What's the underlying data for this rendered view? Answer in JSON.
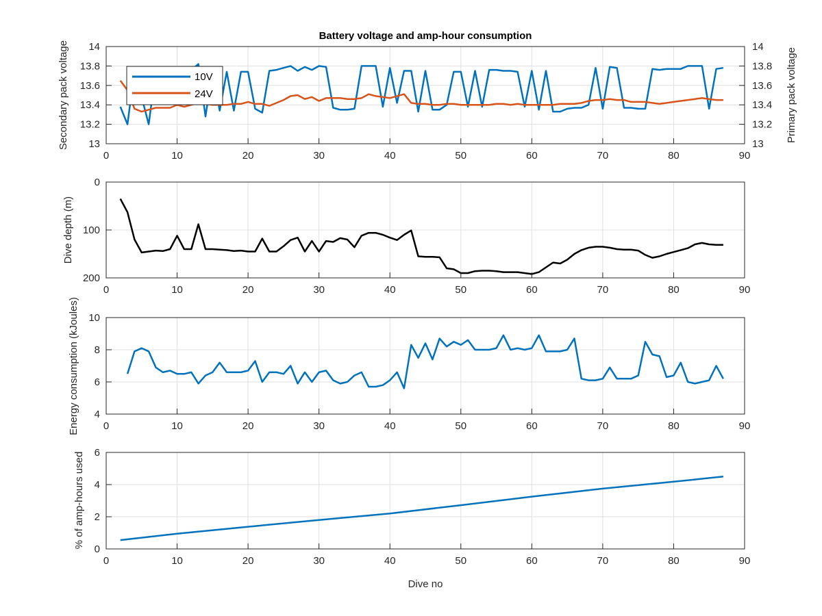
{
  "figure": {
    "title": "Battery voltage and amp-hour consumption",
    "colors": {
      "blue": "#0072BD",
      "orange": "#D95319",
      "black": "#000000",
      "grid": "#dfdfdf",
      "axis": "#262626"
    }
  },
  "chart_data": [
    {
      "type": "line",
      "title": "Battery voltage and amp-hour consumption",
      "xlabel": "",
      "ylabel": "Secondary pack voltage",
      "ylabel_right": "Primary pack voltage",
      "xlim": [
        0,
        90
      ],
      "ylim": [
        13,
        14
      ],
      "ylim_right": [
        13,
        14
      ],
      "xticks": [
        0,
        10,
        20,
        30,
        40,
        50,
        60,
        70,
        80,
        90
      ],
      "yticks": [
        13,
        13.2,
        13.4,
        13.6,
        13.8,
        14
      ],
      "yticks_right": [
        13,
        13.2,
        13.4,
        13.6,
        13.8,
        14
      ],
      "grid": true,
      "legend": {
        "placement": "top-left",
        "entries": [
          "10V",
          "24V"
        ]
      },
      "series": [
        {
          "name": "10V",
          "axis": "left",
          "color": "#0072BD",
          "x": [
            2,
            3,
            4,
            5,
            6,
            7,
            8,
            9,
            10,
            11,
            12,
            13,
            14,
            15,
            16,
            17,
            18,
            19,
            20,
            21,
            22,
            23,
            24,
            25,
            26,
            27,
            28,
            29,
            30,
            31,
            32,
            33,
            34,
            35,
            36,
            37,
            38,
            39,
            40,
            41,
            42,
            43,
            44,
            45,
            46,
            47,
            48,
            49,
            50,
            51,
            52,
            53,
            54,
            55,
            56,
            57,
            58,
            59,
            60,
            61,
            62,
            63,
            64,
            65,
            66,
            67,
            68,
            69,
            70,
            71,
            72,
            73,
            74,
            75,
            76,
            77,
            78,
            79,
            80,
            81,
            82,
            83,
            84,
            85,
            86,
            87
          ],
          "values": [
            13.38,
            13.2,
            13.76,
            13.48,
            13.2,
            13.76,
            13.42,
            13.76,
            13.76,
            13.42,
            13.76,
            13.82,
            13.28,
            13.76,
            13.34,
            13.74,
            13.34,
            13.74,
            13.74,
            13.36,
            13.32,
            13.75,
            13.76,
            13.78,
            13.8,
            13.75,
            13.79,
            13.76,
            13.8,
            13.79,
            13.37,
            13.35,
            13.35,
            13.36,
            13.8,
            13.8,
            13.8,
            13.38,
            13.78,
            13.42,
            13.75,
            13.75,
            13.33,
            13.75,
            13.35,
            13.35,
            13.4,
            13.74,
            13.74,
            13.38,
            13.75,
            13.38,
            13.76,
            13.76,
            13.75,
            13.75,
            13.74,
            13.38,
            13.75,
            13.35,
            13.75,
            13.33,
            13.33,
            13.36,
            13.37,
            13.37,
            13.4,
            13.78,
            13.36,
            13.79,
            13.78,
            13.37,
            13.37,
            13.36,
            13.36,
            13.77,
            13.76,
            13.77,
            13.77,
            13.77,
            13.8,
            13.8,
            13.8,
            13.36,
            13.77,
            13.78
          ]
        },
        {
          "name": "24V",
          "axis": "right",
          "color": "#D95319",
          "x": [
            2,
            3,
            4,
            5,
            6,
            7,
            8,
            9,
            10,
            11,
            12,
            13,
            14,
            15,
            16,
            17,
            18,
            19,
            20,
            21,
            22,
            23,
            24,
            25,
            26,
            27,
            28,
            29,
            30,
            31,
            32,
            33,
            34,
            35,
            36,
            37,
            38,
            39,
            40,
            41,
            42,
            43,
            44,
            45,
            46,
            47,
            48,
            49,
            50,
            51,
            52,
            53,
            54,
            55,
            56,
            57,
            58,
            59,
            60,
            61,
            62,
            63,
            64,
            65,
            66,
            67,
            68,
            69,
            70,
            71,
            72,
            73,
            74,
            75,
            76,
            77,
            78,
            79,
            80,
            81,
            82,
            83,
            84,
            85,
            86,
            87
          ],
          "values": [
            13.65,
            13.55,
            13.36,
            13.33,
            13.35,
            13.37,
            13.37,
            13.37,
            13.4,
            13.38,
            13.4,
            13.42,
            13.41,
            13.4,
            13.4,
            13.4,
            13.41,
            13.41,
            13.43,
            13.41,
            13.41,
            13.39,
            13.42,
            13.45,
            13.49,
            13.5,
            13.46,
            13.48,
            13.44,
            13.47,
            13.47,
            13.47,
            13.46,
            13.46,
            13.47,
            13.51,
            13.49,
            13.48,
            13.47,
            13.49,
            13.51,
            13.42,
            13.41,
            13.41,
            13.4,
            13.4,
            13.41,
            13.41,
            13.4,
            13.4,
            13.4,
            13.4,
            13.4,
            13.41,
            13.41,
            13.4,
            13.41,
            13.4,
            13.4,
            13.4,
            13.4,
            13.4,
            13.41,
            13.41,
            13.41,
            13.42,
            13.44,
            13.45,
            13.45,
            13.46,
            13.45,
            13.45,
            13.43,
            13.43,
            13.43,
            13.42,
            13.41,
            13.42,
            13.43,
            13.44,
            13.45,
            13.46,
            13.47,
            13.46,
            13.45,
            13.45
          ]
        }
      ]
    },
    {
      "type": "line",
      "xlabel": "",
      "ylabel": "Dive depth (m)",
      "xlim": [
        0,
        90
      ],
      "ylim": [
        0,
        200
      ],
      "y_reversed": true,
      "xticks": [
        0,
        10,
        20,
        30,
        40,
        50,
        60,
        70,
        80,
        90
      ],
      "yticks": [
        0,
        100,
        200
      ],
      "grid": true,
      "series": [
        {
          "color": "#000000",
          "x": [
            2,
            3,
            4,
            5,
            6,
            7,
            8,
            9,
            10,
            11,
            12,
            13,
            14,
            15,
            16,
            17,
            18,
            19,
            20,
            21,
            22,
            23,
            24,
            25,
            26,
            27,
            28,
            29,
            30,
            31,
            32,
            33,
            34,
            35,
            36,
            37,
            38,
            39,
            40,
            41,
            42,
            43,
            44,
            45,
            46,
            47,
            48,
            49,
            50,
            51,
            52,
            53,
            54,
            55,
            56,
            57,
            58,
            59,
            60,
            61,
            62,
            63,
            64,
            65,
            66,
            67,
            68,
            69,
            70,
            71,
            72,
            73,
            74,
            75,
            76,
            77,
            78,
            79,
            80,
            81,
            82,
            83,
            84,
            85,
            86,
            87
          ],
          "values": [
            35,
            63,
            120,
            147,
            145,
            143,
            144,
            140,
            112,
            140,
            140,
            88,
            140,
            140,
            141,
            142,
            144,
            143,
            145,
            145,
            118,
            145,
            145,
            134,
            121,
            116,
            145,
            123,
            145,
            123,
            125,
            117,
            120,
            136,
            112,
            106,
            106,
            110,
            116,
            121,
            110,
            101,
            155,
            156,
            156,
            157,
            180,
            182,
            190,
            190,
            186,
            185,
            185,
            186,
            188,
            188,
            188,
            190,
            192,
            188,
            178,
            168,
            170,
            162,
            150,
            142,
            137,
            135,
            135,
            137,
            140,
            141,
            141,
            143,
            152,
            158,
            155,
            150,
            146,
            142,
            138,
            130,
            127,
            130,
            131,
            131
          ]
        }
      ]
    },
    {
      "type": "line",
      "xlabel": "",
      "ylabel": "Energy consumption (kJoules)",
      "xlim": [
        0,
        90
      ],
      "ylim": [
        4,
        10
      ],
      "xticks": [
        0,
        10,
        20,
        30,
        40,
        50,
        60,
        70,
        80,
        90
      ],
      "yticks": [
        4,
        6,
        8,
        10
      ],
      "grid": true,
      "series": [
        {
          "color": "#0072BD",
          "x": [
            3,
            4,
            5,
            6,
            7,
            8,
            9,
            10,
            11,
            12,
            13,
            14,
            15,
            16,
            17,
            18,
            19,
            20,
            21,
            22,
            23,
            24,
            25,
            26,
            27,
            28,
            29,
            30,
            31,
            32,
            33,
            34,
            35,
            36,
            37,
            38,
            39,
            40,
            41,
            42,
            43,
            44,
            45,
            46,
            47,
            48,
            49,
            50,
            51,
            52,
            53,
            54,
            55,
            56,
            57,
            58,
            59,
            60,
            61,
            62,
            63,
            64,
            65,
            66,
            67,
            68,
            69,
            70,
            71,
            72,
            73,
            74,
            75,
            76,
            77,
            78,
            79,
            80,
            81,
            82,
            83,
            84,
            85,
            86,
            87
          ],
          "values": [
            6.5,
            7.9,
            8.1,
            7.9,
            6.9,
            6.6,
            6.7,
            6.5,
            6.5,
            6.6,
            5.9,
            6.4,
            6.6,
            7.2,
            6.6,
            6.6,
            6.6,
            6.7,
            7.3,
            6.0,
            6.6,
            6.6,
            6.5,
            7.0,
            5.9,
            6.6,
            6.0,
            6.6,
            6.7,
            6.1,
            5.9,
            6.0,
            6.4,
            6.6,
            5.7,
            5.7,
            5.8,
            6.1,
            6.6,
            5.6,
            8.3,
            7.5,
            8.4,
            7.4,
            8.7,
            8.2,
            8.5,
            8.3,
            8.6,
            8.0,
            8.0,
            8.0,
            8.1,
            8.9,
            8.0,
            8.1,
            8.0,
            8.1,
            8.9,
            7.9,
            7.9,
            7.9,
            8.0,
            8.7,
            6.2,
            6.1,
            6.1,
            6.2,
            6.9,
            6.2,
            6.2,
            6.2,
            6.4,
            8.5,
            7.7,
            7.6,
            6.3,
            6.4,
            7.2,
            6.0,
            5.9,
            6.0,
            6.1,
            7.0,
            6.2
          ]
        }
      ]
    },
    {
      "type": "line",
      "xlabel": "Dive no",
      "ylabel": "% of amp-hours used",
      "xlim": [
        0,
        90
      ],
      "ylim": [
        0,
        6
      ],
      "xticks": [
        0,
        10,
        20,
        30,
        40,
        50,
        60,
        70,
        80,
        90
      ],
      "yticks": [
        0,
        2,
        4,
        6
      ],
      "grid": true,
      "series": [
        {
          "color": "#0072BD",
          "x": [
            2,
            10,
            20,
            30,
            40,
            50,
            60,
            70,
            80,
            87
          ],
          "values": [
            0.55,
            0.95,
            1.38,
            1.8,
            2.2,
            2.72,
            3.25,
            3.75,
            4.18,
            4.5
          ]
        }
      ]
    }
  ]
}
